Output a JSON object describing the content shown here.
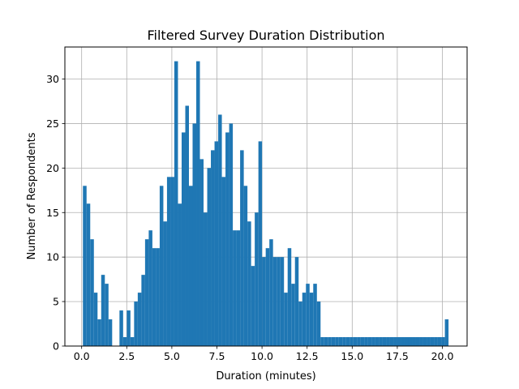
{
  "chart_data": {
    "type": "bar",
    "subtype": "histogram",
    "title": "Filtered Survey Duration Distribution",
    "xlabel": "Duration (minutes)",
    "ylabel": "Number of Respondents",
    "xlim": [
      -0.93,
      21.37
    ],
    "ylim": [
      0,
      33.6
    ],
    "xticks": [
      0,
      2.5,
      5,
      7.5,
      10,
      12.5,
      15,
      17.5,
      20
    ],
    "xtick_labels": [
      "0.0",
      "2.5",
      "5.0",
      "7.5",
      "10.0",
      "12.5",
      "15.0",
      "17.5",
      "20.0"
    ],
    "yticks": [
      0,
      5,
      10,
      15,
      20,
      25,
      30
    ],
    "ytick_labels": [
      "0",
      "5",
      "10",
      "15",
      "20",
      "25",
      "30"
    ],
    "grid": true,
    "legend": "none",
    "bar_color": "#1f77b4",
    "bin_start": 0.07,
    "bin_width": 0.2027,
    "values": [
      18,
      16,
      12,
      6,
      3,
      8,
      7,
      3,
      0,
      0,
      4,
      1,
      4,
      1,
      5,
      6,
      8,
      12,
      13,
      11,
      11,
      18,
      14,
      19,
      19,
      32,
      16,
      24,
      27,
      18,
      25,
      32,
      21,
      15,
      20,
      22,
      23,
      26,
      19,
      24,
      25,
      13,
      13,
      22,
      18,
      14,
      9,
      15,
      23,
      10,
      11,
      12,
      10,
      10,
      10,
      6,
      11,
      7,
      10,
      5,
      6,
      7,
      6,
      7,
      5,
      1,
      1,
      1,
      1,
      1,
      1,
      1,
      1,
      1,
      1,
      1,
      1,
      1,
      1,
      1,
      1,
      1,
      1,
      1,
      1,
      1,
      1,
      1,
      1,
      1,
      1,
      1,
      1,
      1,
      1,
      1,
      1,
      1,
      1,
      3
    ]
  }
}
